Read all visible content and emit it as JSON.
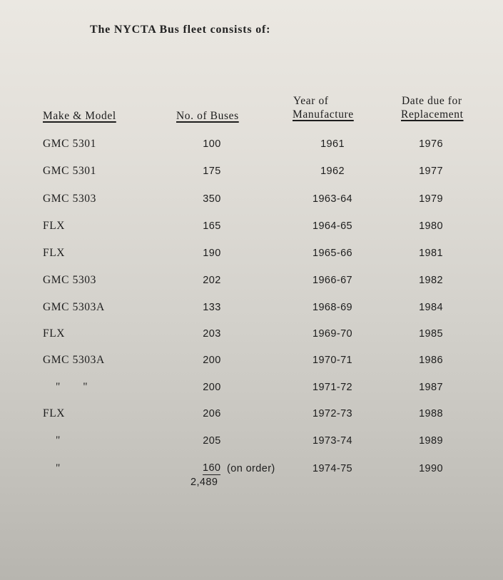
{
  "title": "The NYCTA Bus fleet consists of:",
  "headers": {
    "make_model": "Make & Model",
    "buses": "No. of Buses",
    "year_line1": "Year of",
    "year_line2": "Manufacture",
    "replacement_line1": "Date due for",
    "replacement_line2": "Replacement"
  },
  "rows": [
    {
      "make": "GMC 5301",
      "buses": "100",
      "year": "1961",
      "replacement": "1976"
    },
    {
      "make": "GMC 5301",
      "buses": "175",
      "year": "1962",
      "replacement": "1977"
    },
    {
      "make": "GMC 5303",
      "buses": "350",
      "year": "1963-64",
      "replacement": "1979"
    },
    {
      "make": "FLX",
      "buses": "165",
      "year": "1964-65",
      "replacement": "1980"
    },
    {
      "make": "FLX",
      "buses": "190",
      "year": "1965-66",
      "replacement": "1981"
    },
    {
      "make": "GMC 5303",
      "buses": "202",
      "year": "1966-67",
      "replacement": "1982"
    },
    {
      "make": "GMC 5303A",
      "buses": "133",
      "year": "1968-69",
      "replacement": "1984"
    },
    {
      "make": "FLX",
      "buses": "203",
      "year": "1969-70",
      "replacement": "1985"
    },
    {
      "make": "GMC 5303A",
      "buses": "200",
      "year": "1970-71",
      "replacement": "1986"
    },
    {
      "make": "\"       \"",
      "buses": "200",
      "year": "1971-72",
      "replacement": "1987"
    },
    {
      "make": "FLX",
      "buses": "206",
      "year": "1972-73",
      "replacement": "1988"
    },
    {
      "make": "\"",
      "buses": "205",
      "year": "1973-74",
      "replacement": "1989"
    },
    {
      "make": "\"",
      "buses": "160",
      "buses_note": "(on order)",
      "year": "1974-75",
      "replacement": "1990"
    }
  ],
  "total": "2,489"
}
